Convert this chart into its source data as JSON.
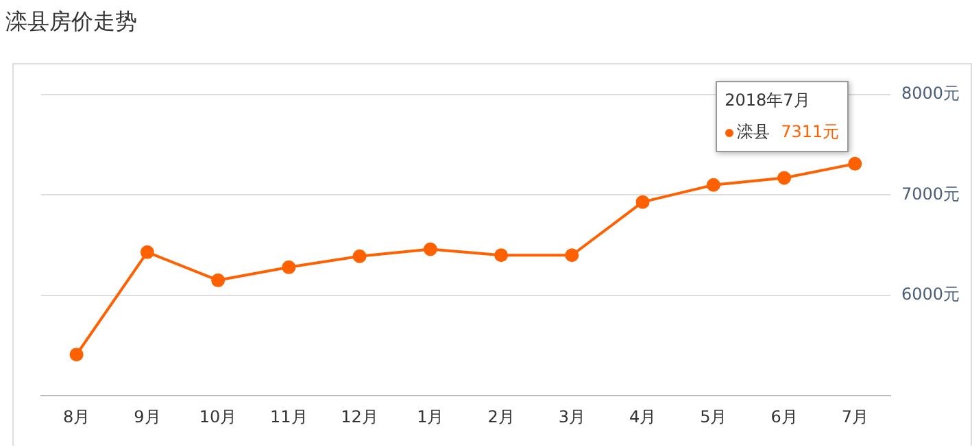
{
  "chart_data": {
    "type": "line",
    "title": "滦县房价走势",
    "categories": [
      "8月",
      "9月",
      "10月",
      "11月",
      "12月",
      "1月",
      "2月",
      "3月",
      "4月",
      "5月",
      "6月",
      "7月"
    ],
    "series": [
      {
        "name": "滦县",
        "color": "#ff6000",
        "values": [
          5410,
          6430,
          6150,
          6280,
          6390,
          6460,
          6400,
          6400,
          6930,
          7100,
          7170,
          7311
        ],
        "value_labels": [
          null,
          null,
          null,
          null,
          null,
          null,
          null,
          null,
          null,
          null,
          null,
          "7311元"
        ]
      }
    ],
    "ylim": [
      5000,
      8000
    ],
    "yticks": [
      {
        "value": 6000,
        "label": "6000元"
      },
      {
        "value": 7000,
        "label": "7000元"
      },
      {
        "value": 8000,
        "label": "8000元"
      }
    ],
    "annotations": [
      "2018年7月"
    ],
    "grid": "y",
    "legend": "top right",
    "marker": "circle",
    "line_style": "solid"
  }
}
